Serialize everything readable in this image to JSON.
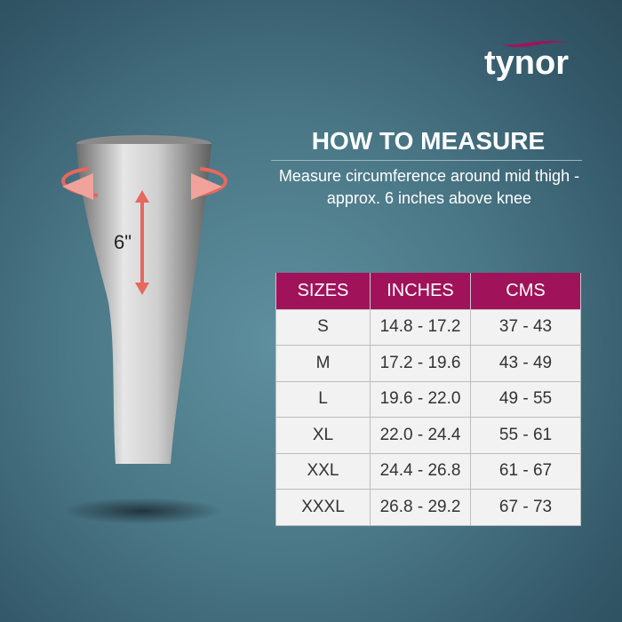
{
  "brand": {
    "logo_text": "tynor",
    "accent": "#a0135a"
  },
  "heading": {
    "title": "HOW TO MEASURE",
    "subtitle": "Measure circumference around mid thigh - approx. 6 inches above knee"
  },
  "illustration": {
    "measure_label": "6\""
  },
  "size_chart": {
    "headers": [
      "SIZES",
      "INCHES",
      "CMS"
    ],
    "rows": [
      [
        "S",
        "14.8 - 17.2",
        "37 - 43"
      ],
      [
        "M",
        "17.2 - 19.6",
        "43 - 49"
      ],
      [
        "L",
        "19.6 - 22.0",
        "49 - 55"
      ],
      [
        "XL",
        "22.0 - 24.4",
        "55 - 61"
      ],
      [
        "XXL",
        "24.4 - 26.8",
        "61 - 67"
      ],
      [
        "XXXL",
        "26.8 - 29.2",
        "67 - 73"
      ]
    ]
  }
}
